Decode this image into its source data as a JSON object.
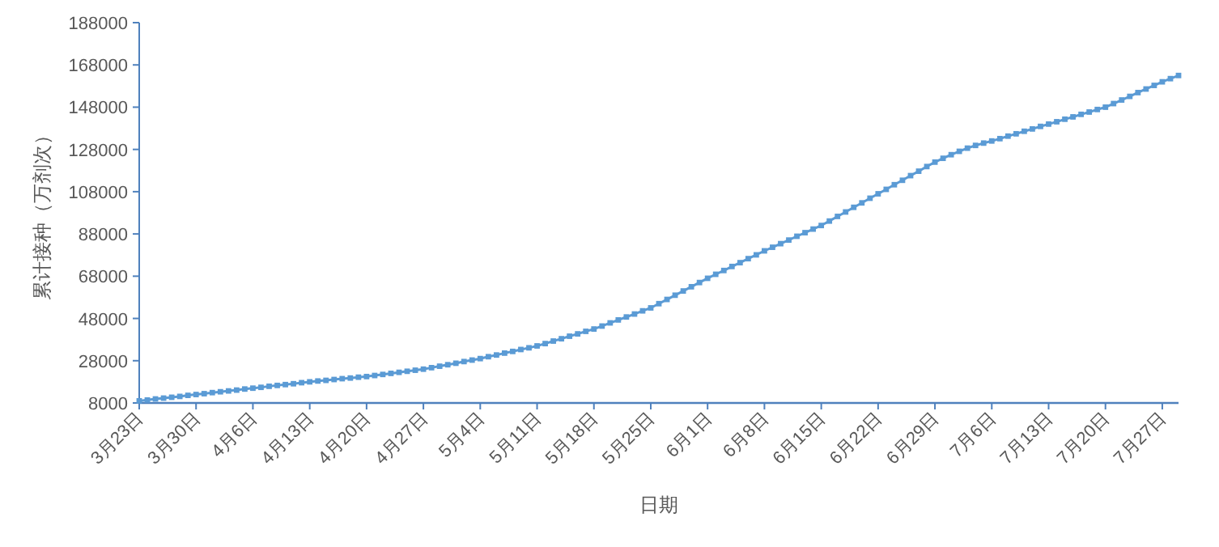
{
  "chart_data": {
    "type": "line",
    "xlabel": "日期",
    "ylabel": "累计接种（万剂次）",
    "categories": [
      "3月23日",
      null,
      null,
      null,
      null,
      null,
      null,
      "3月30日",
      null,
      null,
      null,
      null,
      null,
      null,
      "4月6日",
      null,
      null,
      null,
      null,
      null,
      null,
      "4月13日",
      null,
      null,
      null,
      null,
      null,
      null,
      "4月20日",
      null,
      null,
      null,
      null,
      null,
      null,
      "4月27日",
      null,
      null,
      null,
      null,
      null,
      null,
      "5月4日",
      null,
      null,
      null,
      null,
      null,
      null,
      "5月11日",
      null,
      null,
      null,
      null,
      null,
      null,
      "5月18日",
      null,
      null,
      null,
      null,
      null,
      null,
      "5月25日",
      null,
      null,
      null,
      null,
      null,
      null,
      "6月1日",
      null,
      null,
      null,
      null,
      null,
      null,
      "6月8日",
      null,
      null,
      null,
      null,
      null,
      null,
      "6月15日",
      null,
      null,
      null,
      null,
      null,
      null,
      "6月22日",
      null,
      null,
      null,
      null,
      null,
      null,
      "6月29日",
      null,
      null,
      null,
      null,
      null,
      null,
      "7月6日",
      null,
      null,
      null,
      null,
      null,
      null,
      "7月13日",
      null,
      null,
      null,
      null,
      null,
      null,
      "7月20日",
      null,
      null,
      null,
      null,
      null,
      null,
      "7月27日",
      null,
      null
    ],
    "series": [
      {
        "color": "#5b9bd5",
        "values": [
          9000,
          9400,
          9900,
          10300,
          10700,
          11100,
          11600,
          12000,
          12400,
          12900,
          13300,
          13700,
          14100,
          14600,
          15000,
          15400,
          15900,
          16300,
          16700,
          17100,
          17600,
          18000,
          18400,
          18700,
          19100,
          19500,
          19800,
          20200,
          20500,
          21000,
          21500,
          22000,
          22500,
          23000,
          23500,
          24000,
          24700,
          25400,
          26100,
          26800,
          27600,
          28300,
          29000,
          29900,
          30700,
          31600,
          32400,
          33300,
          34100,
          35000,
          36100,
          37300,
          38400,
          39600,
          40700,
          41900,
          43000,
          44400,
          45900,
          47300,
          48700,
          50100,
          51600,
          53000,
          55000,
          57000,
          59000,
          61000,
          63000,
          65000,
          67000,
          68900,
          70700,
          72600,
          74400,
          76300,
          78100,
          80000,
          81700,
          83400,
          85100,
          86900,
          88600,
          90300,
          92000,
          94100,
          96300,
          98400,
          100600,
          102700,
          104900,
          107000,
          109100,
          111300,
          113400,
          115600,
          117700,
          119900,
          122000,
          123800,
          125500,
          127100,
          128600,
          129900,
          131000,
          132000,
          133100,
          134300,
          135400,
          136600,
          137700,
          138900,
          140000,
          141100,
          142300,
          143400,
          144600,
          145700,
          146900,
          148000,
          149700,
          151400,
          153100,
          154900,
          156600,
          158300,
          160000,
          161500,
          163000
        ]
      }
    ],
    "ylim": [
      8000,
      188000
    ],
    "yticks": [
      8000,
      28000,
      48000,
      68000,
      88000,
      108000,
      128000,
      148000,
      168000,
      188000
    ],
    "marker": "square",
    "grid": false
  }
}
